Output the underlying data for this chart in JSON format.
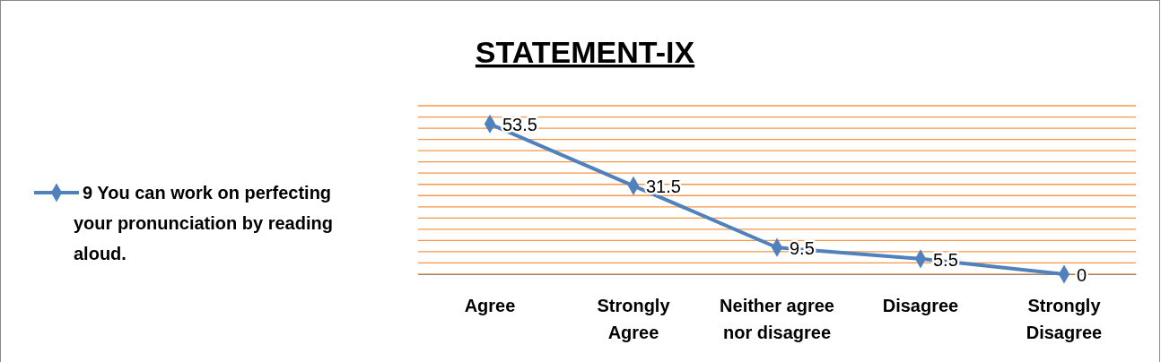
{
  "chart_data": {
    "type": "line",
    "title": "STATEMENT-IX",
    "categories": [
      "Agree",
      "Strongly Agree",
      "Neither agree nor disagree",
      "Disagree",
      "Strongly Disagree"
    ],
    "series": [
      {
        "name": "9 You can work on perfecting your pronunciation by reading aloud.",
        "color": "#4f81bd",
        "values": [
          53.5,
          31.5,
          9.5,
          5.5,
          0
        ]
      }
    ],
    "ylim": [
      0,
      60
    ],
    "yticks": [
      {
        "value": 0,
        "label": null
      },
      {
        "value": 4,
        "label": null
      },
      {
        "value": 8,
        "label": null
      },
      {
        "value": 12,
        "label": null
      },
      {
        "value": 16,
        "label": null
      },
      {
        "value": 20,
        "label": null
      },
      {
        "value": 24,
        "label": null
      },
      {
        "value": 28,
        "label": null
      },
      {
        "value": 32,
        "label": null
      },
      {
        "value": 36,
        "label": null
      },
      {
        "value": 40,
        "label": null
      },
      {
        "value": 44,
        "label": null
      },
      {
        "value": 48,
        "label": null
      },
      {
        "value": 52,
        "label": null
      },
      {
        "value": 56,
        "label": null
      },
      {
        "value": 60,
        "label": null
      }
    ],
    "grid": "y",
    "tick_labels": "x",
    "legend": "left",
    "marker": "diamond",
    "line_style": "solid",
    "data_labels": true
  }
}
